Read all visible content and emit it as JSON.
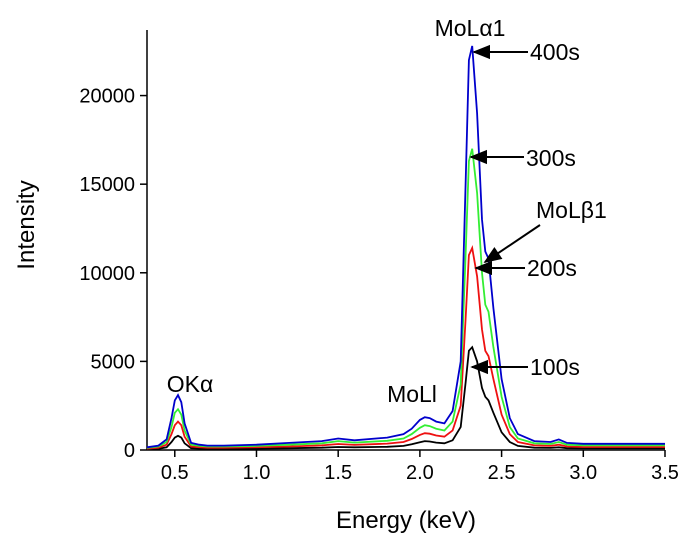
{
  "chart_data": {
    "type": "line",
    "x_label": "Energy   (keV)",
    "y_label": "Intensity",
    "x": [
      0.33,
      0.4,
      0.45,
      0.48,
      0.5,
      0.52,
      0.54,
      0.56,
      0.6,
      0.65,
      0.7,
      0.8,
      1.0,
      1.2,
      1.4,
      1.5,
      1.6,
      1.8,
      1.9,
      1.95,
      2.0,
      2.03,
      2.06,
      2.1,
      2.15,
      2.2,
      2.25,
      2.28,
      2.3,
      2.32,
      2.35,
      2.38,
      2.4,
      2.42,
      2.45,
      2.5,
      2.55,
      2.6,
      2.7,
      2.8,
      2.85,
      2.9,
      3.0,
      3.2,
      3.5
    ],
    "series": [
      {
        "name": "400s",
        "color": "#0000cc",
        "values": [
          150,
          250,
          600,
          1800,
          2800,
          3100,
          2700,
          1500,
          400,
          300,
          250,
          250,
          300,
          400,
          500,
          650,
          550,
          700,
          900,
          1200,
          1700,
          1850,
          1800,
          1600,
          1500,
          2200,
          5000,
          15000,
          22000,
          22800,
          19000,
          13000,
          11200,
          10800,
          8000,
          4000,
          1800,
          900,
          500,
          450,
          600,
          400,
          350,
          350,
          350
        ]
      },
      {
        "name": "300s",
        "color": "#33ee33",
        "values": [
          120,
          200,
          450,
          1300,
          2100,
          2300,
          2000,
          1100,
          300,
          230,
          200,
          200,
          230,
          300,
          380,
          500,
          420,
          520,
          650,
          900,
          1250,
          1400,
          1350,
          1200,
          1100,
          1600,
          3700,
          11000,
          16300,
          17000,
          14500,
          10000,
          8200,
          7800,
          5800,
          3000,
          1300,
          650,
          380,
          340,
          450,
          300,
          260,
          260,
          260
        ]
      },
      {
        "name": "200s",
        "color": "#ee1111",
        "values": [
          80,
          130,
          300,
          900,
          1400,
          1600,
          1400,
          750,
          200,
          160,
          130,
          130,
          160,
          200,
          260,
          340,
          290,
          360,
          450,
          620,
          850,
          950,
          920,
          820,
          750,
          1100,
          2500,
          7400,
          11000,
          11400,
          9800,
          6800,
          5600,
          5300,
          4000,
          2000,
          900,
          450,
          260,
          230,
          300,
          200,
          170,
          170,
          170
        ]
      },
      {
        "name": "100s",
        "color": "#000000",
        "values": [
          40,
          70,
          150,
          450,
          700,
          800,
          700,
          380,
          100,
          80,
          70,
          70,
          80,
          100,
          130,
          170,
          150,
          180,
          230,
          320,
          440,
          500,
          480,
          420,
          380,
          550,
          1300,
          3800,
          5600,
          5800,
          5000,
          3500,
          3000,
          2800,
          2100,
          1000,
          450,
          230,
          130,
          120,
          150,
          100,
          90,
          90,
          90
        ]
      }
    ],
    "annotations": [
      "MoLα1",
      "400s",
      "300s",
      "MoLβ1",
      "200s",
      "100s",
      "OKα",
      "MoLl"
    ],
    "xlim": [
      0.33,
      3.5
    ],
    "ylim": [
      0,
      23700
    ],
    "xticks": [
      0.5,
      {
        "value": 1,
        "label": "1.0"
      },
      1.5,
      {
        "value": 2,
        "label": "2.0"
      },
      2.5,
      {
        "value": 3,
        "label": "3.0"
      },
      3.5
    ],
    "yticks": [
      0,
      5000,
      10000,
      15000,
      20000
    ],
    "grid": false
  }
}
